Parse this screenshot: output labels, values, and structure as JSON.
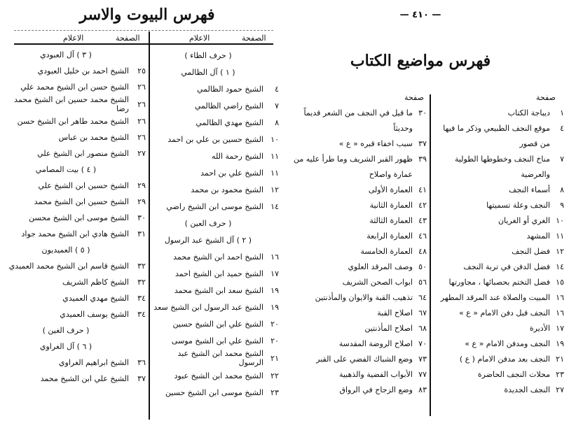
{
  "left_page": {
    "title": "فهرس البيوت والاسر",
    "col_header_page": "الصفحة",
    "col_header_name": "الاعلام",
    "right_column": [
      {
        "page": "",
        "text": "( حرف الظاء )",
        "center": true
      },
      {
        "page": "",
        "text": "( ١ ) آل الظالمي",
        "center": true
      },
      {
        "page": "٤",
        "text": "الشيخ حمود الظالمي"
      },
      {
        "page": "٧",
        "text": "الشيخ راضي الظالمي"
      },
      {
        "page": "٨",
        "text": "الشيخ مهدي الظالمي"
      },
      {
        "page": "١٠",
        "text": "الشيخ حسين بن علي بن احمد"
      },
      {
        "page": "١١",
        "text": "الشيخ رحمة الله"
      },
      {
        "page": "١١",
        "text": "الشيخ علي بن احمد"
      },
      {
        "page": "١٢",
        "text": "الشيخ محمود بن محمد"
      },
      {
        "page": "١٤",
        "text": "الشيخ موسى ابن الشيخ راضي"
      },
      {
        "page": "",
        "text": "( حرف العين )",
        "center": true
      },
      {
        "page": "",
        "text": "( ٢ ) آل الشيخ عبد الرسول",
        "center": true
      },
      {
        "page": "١٦",
        "text": "الشيخ احمد ابن الشيخ محمد"
      },
      {
        "page": "١٧",
        "text": "الشيخ حميد ابن الشيخ احمد"
      },
      {
        "page": "١٩",
        "text": "الشيخ سعد ابن الشيخ محمد"
      },
      {
        "page": "١٩",
        "text": "الشيخ عبد الرسول ابن الشيخ سعد"
      },
      {
        "page": "٢٠",
        "text": "الشيخ علي ابن الشيخ حسين"
      },
      {
        "page": "٢٠",
        "text": "الشيخ علي ابن الشيخ موسى"
      },
      {
        "page": "٢١",
        "text": "الشيخ محمد ابن الشيخ عبد الرسول"
      },
      {
        "page": "٢٢",
        "text": "الشيخ محمد ابن الشيخ عبود"
      },
      {
        "page": "٢٣",
        "text": "الشيخ موسى ابن الشيخ حسين"
      }
    ],
    "left_column": [
      {
        "page": "",
        "text": "( ٣ ) آل العبودي",
        "center": true
      },
      {
        "page": "٢٥",
        "text": "الشيخ احمد بن خليل العبودي"
      },
      {
        "page": "٢٦",
        "text": "الشيخ حسن ابن الشيخ محمد علي"
      },
      {
        "page": "٢٦",
        "text": "الشيخ محمد حسين ابن الشيخ محمد رضا"
      },
      {
        "page": "٢٦",
        "text": "الشيخ محمد طاهر ابن الشيخ حسن"
      },
      {
        "page": "٢٦",
        "text": "الشيخ محمد بن عباس"
      },
      {
        "page": "٢٧",
        "text": "الشيخ منصور ابن الشيخ علي"
      },
      {
        "page": "",
        "text": "( ٤ ) بيت المصامي",
        "center": true
      },
      {
        "page": "٢٩",
        "text": "الشيخ حسين ابن الشيخ علي"
      },
      {
        "page": "٢٩",
        "text": "الشيخ حسين ابن الشيخ محمد"
      },
      {
        "page": "٣٠",
        "text": "الشيخ موسى ابن الشيخ محسن"
      },
      {
        "page": "٣١",
        "text": "الشيخ هادي ابن الشيخ محمد جواد"
      },
      {
        "page": "",
        "text": "( ٥ ) العميديون",
        "center": true
      },
      {
        "page": "٣٢",
        "text": "الشيخ قاسم ابن الشيخ محمد العميدي"
      },
      {
        "page": "٣٢",
        "text": "الشيخ كاظم الشريف"
      },
      {
        "page": "٣٤",
        "text": "الشيخ مهدي العميدي"
      },
      {
        "page": "٣٤",
        "text": "الشيخ يوسف العميدي"
      },
      {
        "page": "",
        "text": "( حرف الغين )",
        "center": true
      },
      {
        "page": "",
        "text": "( ٦ ) آل الغراوي",
        "center": true
      },
      {
        "page": "٣٦",
        "text": "الشيخ ابراهيم الغراوي"
      },
      {
        "page": "٣٧",
        "text": "الشيخ علي ابن الشيخ محمد"
      }
    ]
  },
  "right_page": {
    "page_number": "— ٤١٠ —",
    "title": "فهرس مواضيع الكتاب",
    "col_header": "صفحة",
    "right_column": [
      {
        "page": "١",
        "text": "ديباجة الكتاب"
      },
      {
        "page": "٤",
        "text": "موقع النجف الطبيعي وذكر ما فيها"
      },
      {
        "page": "",
        "text": "من قصور"
      },
      {
        "page": "٧",
        "text": "مناخ النجف وخطوطها الطولية"
      },
      {
        "page": "",
        "text": "والعرضية"
      },
      {
        "page": "٨",
        "text": "أسماء النجف"
      },
      {
        "page": "٩",
        "text": "النجف وعلة تسميتها"
      },
      {
        "page": "١٠",
        "text": "الغري أو الغريان"
      },
      {
        "page": "١١",
        "text": "المشهد"
      },
      {
        "page": "١٢",
        "text": "فضل النجف"
      },
      {
        "page": "١٤",
        "text": "فضل الدفن في تربة النجف"
      },
      {
        "page": "١٥",
        "text": "فضل التختم بحصبائها ، مجاورتها"
      },
      {
        "page": "١٦",
        "text": "المبيت والصلاة عند المرقد المطهر"
      },
      {
        "page": "١٦",
        "text": "النجف قبل دفن الامام « ع »"
      },
      {
        "page": "١٧",
        "text": "الأديرة"
      },
      {
        "page": "١٩",
        "text": "النجف ومدفن الامام « ع »"
      },
      {
        "page": "٢١",
        "text": "النجف بعد مدفن الامام ( ع )"
      },
      {
        "page": "٢٣",
        "text": "محلات النجف الحاضرة"
      },
      {
        "page": "٢٧",
        "text": "النجف الجديدة"
      }
    ],
    "left_column": [
      {
        "page": "٣٠",
        "text": "ما قيل في النجف من الشعر قديماً"
      },
      {
        "page": "",
        "text": "وحديثاً"
      },
      {
        "page": "٣٧",
        "text": "سبب اخفاء قبره « ع »"
      },
      {
        "page": "٣٩",
        "text": "ظهور القبر الشريف وما طرأ عليه من"
      },
      {
        "page": "",
        "text": "عمارة واصلاح"
      },
      {
        "page": "٤١",
        "text": "العمارة الأولى"
      },
      {
        "page": "٤٢",
        "text": "العمارة الثانية"
      },
      {
        "page": "٤٣",
        "text": "العمارة الثالثة"
      },
      {
        "page": "٤٦",
        "text": "العمارة الرابعة"
      },
      {
        "page": "٤٨",
        "text": "العمارة الخامسة"
      },
      {
        "page": "٥٠",
        "text": "وصف المرقد العلوي"
      },
      {
        "page": "٥٦",
        "text": "ابواب الصحن الشريف"
      },
      {
        "page": "٦٤",
        "text": "تذهيب القبة والايوان والمأذنتين"
      },
      {
        "page": "٦٧",
        "text": "اصلاح القبة"
      },
      {
        "page": "٦٨",
        "text": "اصلاح المأذنتين"
      },
      {
        "page": "٧٠",
        "text": "اصلاح الروضة المقدسة"
      },
      {
        "page": "٧٣",
        "text": "وضع الشباك الفضي على القبر"
      },
      {
        "page": "٧٧",
        "text": "الأبواب الفضية والذهبية"
      },
      {
        "page": "٨٣",
        "text": "وضع الزجاج في الرواق"
      }
    ]
  }
}
